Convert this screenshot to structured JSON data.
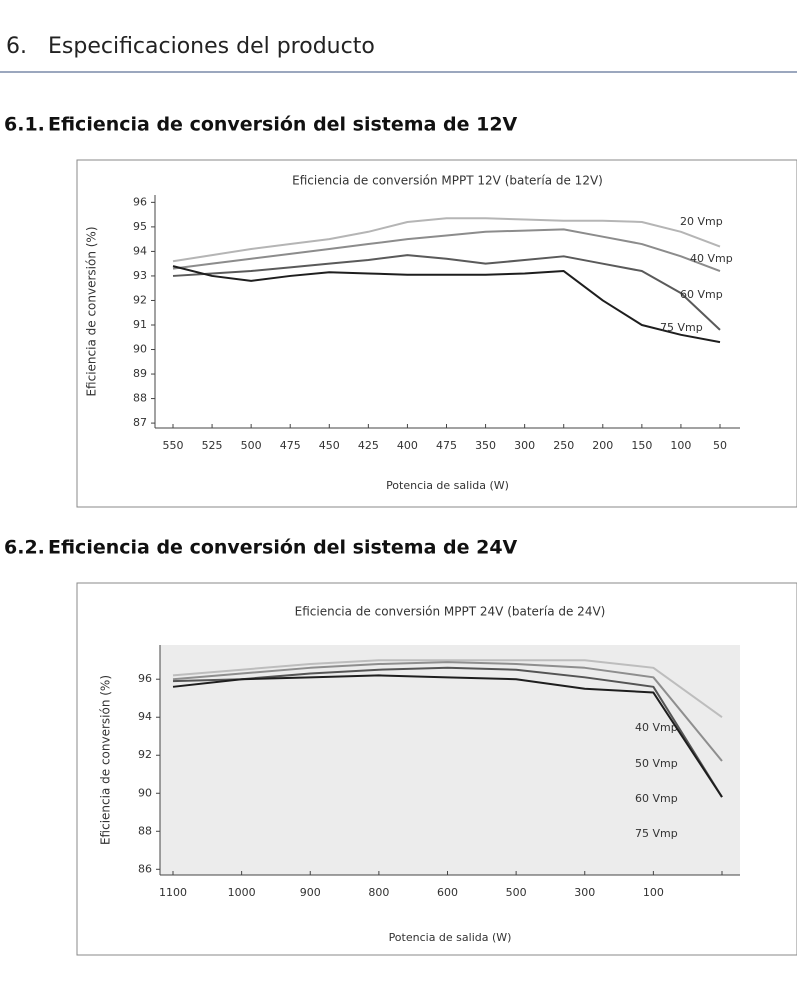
{
  "header": {
    "number": "6.",
    "title": "Especificaciones del producto"
  },
  "sections": [
    {
      "number": "6.1.",
      "title": "Eficiencia de conversión del sistema de 12V"
    },
    {
      "number": "6.2.",
      "title": "Eficiencia de conversión del sistema de 24V"
    }
  ],
  "chart_data": [
    {
      "type": "line",
      "title": "Eficiencia de conversión MPPT 12V (batería de 12V)",
      "x_label": "Potencia de salida (W)",
      "y_label": "Eficiencia de conversión (%)",
      "categories": [
        "550",
        "525",
        "500",
        "475",
        "450",
        "425",
        "400",
        "475",
        "350",
        "300",
        "250",
        "200",
        "150",
        "100",
        "50"
      ],
      "ylim": [
        86.8,
        96.3
      ],
      "yticks": [
        87,
        88,
        89,
        90,
        91,
        92,
        93,
        94,
        95,
        96
      ],
      "series": [
        {
          "name": "20 Vmp",
          "color": "#b5b5b5",
          "values": [
            93.6,
            93.85,
            94.1,
            94.3,
            94.5,
            94.8,
            95.2,
            95.35,
            95.35,
            95.3,
            95.25,
            95.25,
            95.2,
            94.8,
            94.2
          ]
        },
        {
          "name": "40 Vmp",
          "color": "#8c8c8c",
          "values": [
            93.3,
            93.5,
            93.7,
            93.9,
            94.1,
            94.3,
            94.5,
            94.65,
            94.8,
            94.85,
            94.9,
            94.6,
            94.3,
            93.8,
            93.2
          ]
        },
        {
          "name": "60 Vmp",
          "color": "#5a5a5a",
          "values": [
            93.0,
            93.1,
            93.2,
            93.35,
            93.5,
            93.65,
            93.85,
            93.7,
            93.5,
            93.65,
            93.8,
            93.5,
            93.2,
            92.3,
            90.8
          ]
        },
        {
          "name": "75 Vmp",
          "color": "#1e1e1e",
          "values": [
            93.4,
            93.0,
            92.8,
            93.0,
            93.15,
            93.1,
            93.05,
            93.05,
            93.05,
            93.1,
            93.2,
            92.0,
            91.0,
            90.6,
            90.3
          ]
        }
      ]
    },
    {
      "type": "line",
      "title": "Eficiencia de conversión MPPT 24V (batería de 24V)",
      "x_label": "Potencia de salida (W)",
      "y_label": "Eficiencia de conversión (%)",
      "categories": [
        "1100",
        "1000",
        "900",
        "800",
        "600",
        "500",
        "300",
        "100",
        null
      ],
      "ylim": [
        85.7,
        97.8
      ],
      "yticks": [
        86,
        88,
        90,
        92,
        94,
        96
      ],
      "series": [
        {
          "name": "40 Vmp",
          "color": "#bdbdbd",
          "values": [
            96.2,
            96.5,
            96.8,
            97.0,
            97.0,
            97.0,
            97.0,
            96.6,
            94.0
          ]
        },
        {
          "name": "50 Vmp",
          "color": "#8e8e8e",
          "values": [
            96.0,
            96.3,
            96.6,
            96.8,
            96.9,
            96.8,
            96.6,
            96.1,
            91.7
          ]
        },
        {
          "name": "60 Vmp",
          "color": "#555555",
          "values": [
            95.9,
            96.0,
            96.3,
            96.5,
            96.6,
            96.5,
            96.1,
            95.6,
            89.8
          ]
        },
        {
          "name": "75 Vmp",
          "color": "#1e1e1e",
          "values": [
            95.6,
            96.0,
            96.1,
            96.2,
            96.1,
            96.0,
            95.5,
            95.3,
            89.8
          ]
        }
      ]
    }
  ]
}
